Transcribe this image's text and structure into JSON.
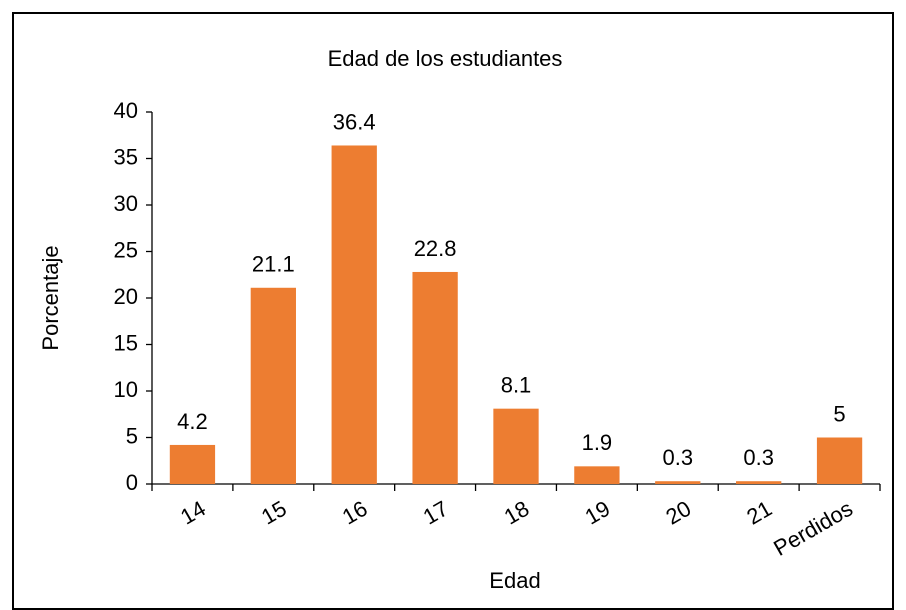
{
  "chart_data": {
    "type": "bar",
    "title": "Edad de los estudiantes",
    "x_label": "Edad",
    "y_label": "Porcentaje",
    "categories": [
      "14",
      "15",
      "16",
      "17",
      "18",
      "19",
      "20",
      "21",
      "Perdidos"
    ],
    "values": [
      4.2,
      21.1,
      36.4,
      22.8,
      8.1,
      1.9,
      0.3,
      0.3,
      5
    ],
    "color": "#ed7d31",
    "ylim": [
      0,
      40
    ],
    "yticks": [
      0,
      5,
      10,
      15,
      20,
      25,
      30,
      35,
      40
    ],
    "grid": false
  }
}
